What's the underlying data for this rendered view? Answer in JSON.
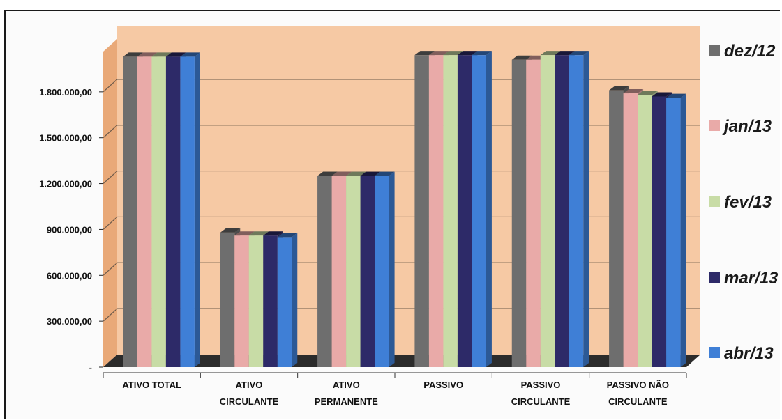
{
  "chart_data": {
    "type": "bar",
    "title": "",
    "xlabel": "",
    "ylabel": "",
    "ylim": [
      0,
      2100000
    ],
    "yticks": [
      0,
      300000,
      600000,
      900000,
      1200000,
      1500000,
      1800000
    ],
    "ytick_labels": [
      "-",
      "300.000,00",
      "600.000,00",
      "900.000,00",
      "1.200.000,00",
      "1.500.000,00",
      "1.800.000,00"
    ],
    "categories": [
      [
        "ATIVO TOTAL"
      ],
      [
        "ATIVO",
        "CIRCULANTE"
      ],
      [
        "ATIVO",
        "PERMANENTE"
      ],
      [
        "PASSIVO"
      ],
      [
        "PASSIVO",
        "CIRCULANTE"
      ],
      [
        "PASSIVO NÃO",
        "CIRCULANTE"
      ]
    ],
    "series": [
      {
        "name": "dez/12",
        "color": "#6e6e6e",
        "values": [
          2030000,
          880000,
          1250000,
          2040000,
          2010000,
          1810000
        ]
      },
      {
        "name": "jan/13",
        "color": "#e9aaa8",
        "values": [
          2030000,
          860000,
          1250000,
          2040000,
          2010000,
          1790000
        ]
      },
      {
        "name": "fev/13",
        "color": "#c8dca6",
        "values": [
          2030000,
          860000,
          1250000,
          2040000,
          2040000,
          1780000
        ]
      },
      {
        "name": "mar/13",
        "color": "#2d2a68",
        "values": [
          2030000,
          860000,
          1250000,
          2040000,
          2040000,
          1770000
        ]
      },
      {
        "name": "abr/13",
        "color": "#3f7fd6",
        "values": [
          2030000,
          850000,
          1250000,
          2040000,
          2040000,
          1760000
        ]
      }
    ],
    "legend_position": "right",
    "grid": true,
    "plot_background": "#f6c9a4"
  }
}
